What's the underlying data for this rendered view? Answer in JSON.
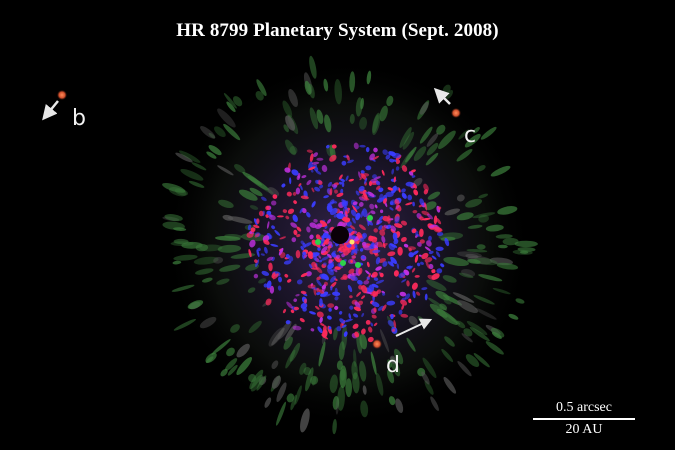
{
  "title": "HR 8799 Planetary System (Sept. 2008)",
  "planets": [
    {
      "label": "b",
      "color": "#d9623c"
    },
    {
      "label": "c",
      "color": "#e0663e"
    },
    {
      "label": "d",
      "color": "#e4693f"
    }
  ],
  "scale_bar": {
    "angular": "0.5 arcsec",
    "physical": "20 AU"
  },
  "colors": {
    "background": "#000000",
    "speckle_red": "#ff2a5c",
    "speckle_blue": "#3a3cff",
    "speckle_magenta": "#c030e0",
    "speckle_green": "#3a7a3a",
    "arrow": "#e8e8e8"
  }
}
